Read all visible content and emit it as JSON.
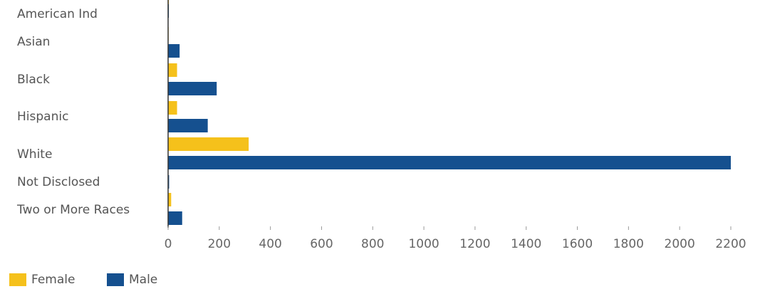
{
  "chart_data": {
    "type": "bar",
    "orientation": "horizontal",
    "categories": [
      "American Ind",
      "Asian",
      "Black",
      "Hispanic",
      "White",
      "Not Disclosed",
      "Two or More Races"
    ],
    "series": [
      {
        "name": "Female",
        "color": "#F5C11B",
        "values": [
          3,
          2,
          35,
          35,
          315,
          0,
          12
        ]
      },
      {
        "name": "Male",
        "color": "#15508F",
        "values": [
          3,
          45,
          190,
          155,
          2200,
          4,
          55
        ]
      }
    ],
    "xticks": [
      0,
      200,
      400,
      600,
      800,
      1000,
      1200,
      1400,
      1600,
      1800,
      2000,
      2200
    ],
    "xlim": [
      0,
      2200
    ],
    "title": "",
    "xlabel": "",
    "ylabel": "",
    "grid": false,
    "legend": {
      "position": "bottom-left",
      "items": [
        "Female",
        "Male"
      ]
    }
  }
}
